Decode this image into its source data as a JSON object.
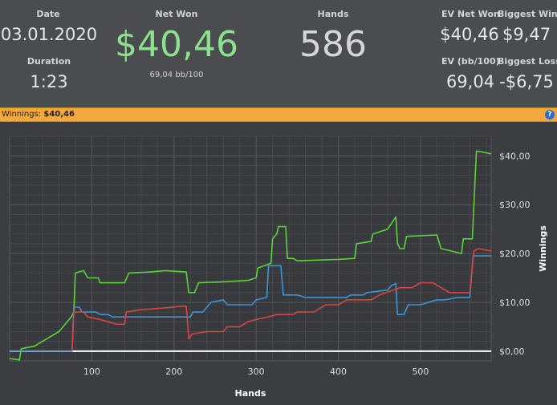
{
  "stats": {
    "date_label": "Date",
    "date_value": "03.01.2020",
    "duration_label": "Duration",
    "duration_value": "1:23",
    "net_won_label": "Net Won",
    "net_won_value": "$40,46",
    "bb_per_100": "69,04 bb/100",
    "hands_label": "Hands",
    "hands_value": "586",
    "ev_net_won_label": "EV Net Won",
    "ev_net_won_value": "$40,46",
    "biggest_win_label": "Biggest Win",
    "biggest_win_value": "$9,47",
    "ev_bb_label": "EV (bb/100)",
    "ev_bb_value": "69,04",
    "biggest_loss_label": "Biggest Loss",
    "biggest_loss_value": "-$6,75",
    "net_won_color": "#8de08d"
  },
  "banner": {
    "label": "Winnings:",
    "value": "$40,46",
    "help": "?"
  },
  "chart_data": {
    "type": "line",
    "xlabel": "Hands",
    "ylabel": "Winnings",
    "xlim": [
      0,
      586
    ],
    "ylim": [
      -2,
      44
    ],
    "x_ticks": [
      100,
      200,
      300,
      400,
      500
    ],
    "y_ticks": [
      0,
      10,
      20,
      30,
      40
    ],
    "y_tick_labels": [
      "$0,00",
      "$10,00",
      "$20,00",
      "$30,00",
      "$40,00"
    ],
    "grid": true,
    "zero_line_color": "#ffffff",
    "series": [
      {
        "color": "#5bd43a",
        "points": [
          [
            0,
            -1.5
          ],
          [
            12,
            -1.8
          ],
          [
            14,
            0.5
          ],
          [
            30,
            1
          ],
          [
            45,
            2.5
          ],
          [
            60,
            4
          ],
          [
            65,
            5
          ],
          [
            75,
            7
          ],
          [
            78,
            8
          ],
          [
            80,
            16
          ],
          [
            90,
            16.5
          ],
          [
            95,
            15
          ],
          [
            108,
            15
          ],
          [
            110,
            14
          ],
          [
            140,
            14
          ],
          [
            145,
            16
          ],
          [
            170,
            16.2
          ],
          [
            190,
            16.5
          ],
          [
            215,
            16.2
          ],
          [
            218,
            12
          ],
          [
            225,
            12
          ],
          [
            230,
            14
          ],
          [
            260,
            14.2
          ],
          [
            290,
            14.5
          ],
          [
            300,
            15
          ],
          [
            302,
            17
          ],
          [
            318,
            18
          ],
          [
            320,
            23
          ],
          [
            325,
            24
          ],
          [
            327,
            25.5
          ],
          [
            336,
            25.5
          ],
          [
            338,
            19
          ],
          [
            345,
            19
          ],
          [
            350,
            18.5
          ],
          [
            400,
            18.8
          ],
          [
            420,
            19
          ],
          [
            422,
            22
          ],
          [
            440,
            22.5
          ],
          [
            442,
            24
          ],
          [
            460,
            25
          ],
          [
            470,
            27.5
          ],
          [
            472,
            22
          ],
          [
            475,
            21
          ],
          [
            480,
            21
          ],
          [
            483,
            23.5
          ],
          [
            520,
            23.8
          ],
          [
            525,
            21
          ],
          [
            550,
            20
          ],
          [
            552,
            23
          ],
          [
            563,
            23
          ],
          [
            565,
            30
          ],
          [
            568,
            41
          ],
          [
            575,
            40.8
          ],
          [
            586,
            40.4
          ]
        ]
      },
      {
        "color": "#3c95d9",
        "points": [
          [
            0,
            0
          ],
          [
            76,
            0
          ],
          [
            78,
            9
          ],
          [
            85,
            9
          ],
          [
            88,
            8
          ],
          [
            105,
            8
          ],
          [
            110,
            7.5
          ],
          [
            120,
            7.5
          ],
          [
            125,
            7
          ],
          [
            220,
            7
          ],
          [
            223,
            8
          ],
          [
            235,
            8
          ],
          [
            245,
            10
          ],
          [
            260,
            10.5
          ],
          [
            265,
            9.5
          ],
          [
            295,
            9.5
          ],
          [
            300,
            10.5
          ],
          [
            313,
            11
          ],
          [
            315,
            17.5
          ],
          [
            330,
            17.5
          ],
          [
            333,
            11.5
          ],
          [
            350,
            11.5
          ],
          [
            360,
            11
          ],
          [
            410,
            11
          ],
          [
            415,
            11.5
          ],
          [
            430,
            11.5
          ],
          [
            435,
            12
          ],
          [
            460,
            12.5
          ],
          [
            465,
            13.5
          ],
          [
            470,
            13.8
          ],
          [
            472,
            7.5
          ],
          [
            480,
            7.5
          ],
          [
            485,
            9.5
          ],
          [
            500,
            9.5
          ],
          [
            520,
            10.5
          ],
          [
            530,
            10.5
          ],
          [
            545,
            11
          ],
          [
            560,
            11
          ],
          [
            564,
            19.5
          ],
          [
            575,
            19.5
          ],
          [
            586,
            19.5
          ]
        ]
      },
      {
        "color": "#d84545",
        "points": [
          [
            76,
            0
          ],
          [
            78,
            8
          ],
          [
            90,
            8
          ],
          [
            95,
            7
          ],
          [
            110,
            6.5
          ],
          [
            120,
            6
          ],
          [
            130,
            5.5
          ],
          [
            140,
            5.5
          ],
          [
            142,
            8
          ],
          [
            160,
            8.5
          ],
          [
            185,
            8.8
          ],
          [
            210,
            9.2
          ],
          [
            215,
            9.2
          ],
          [
            218,
            2.5
          ],
          [
            222,
            3.5
          ],
          [
            240,
            4
          ],
          [
            260,
            4
          ],
          [
            265,
            5
          ],
          [
            280,
            5
          ],
          [
            290,
            6
          ],
          [
            300,
            6.5
          ],
          [
            315,
            7
          ],
          [
            325,
            7.5
          ],
          [
            345,
            7.5
          ],
          [
            350,
            8
          ],
          [
            370,
            8
          ],
          [
            385,
            9.5
          ],
          [
            400,
            9.5
          ],
          [
            410,
            10.5
          ],
          [
            440,
            10.5
          ],
          [
            450,
            11.5
          ],
          [
            475,
            13
          ],
          [
            490,
            13
          ],
          [
            500,
            14
          ],
          [
            515,
            14
          ],
          [
            525,
            13
          ],
          [
            535,
            12
          ],
          [
            560,
            12
          ],
          [
            565,
            20.5
          ],
          [
            570,
            21
          ],
          [
            586,
            20.5
          ]
        ]
      }
    ]
  }
}
